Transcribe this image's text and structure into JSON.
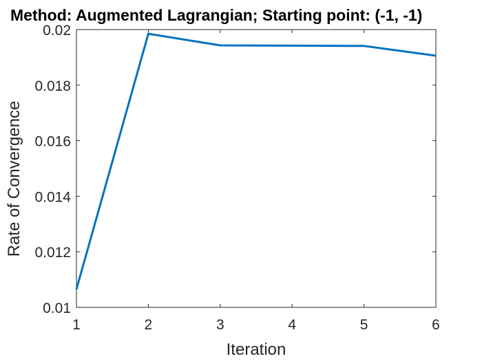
{
  "chart_data": {
    "type": "line",
    "title": "Method: Augmented Lagrangian; Starting point: (-1, -1)",
    "xlabel": "Iteration",
    "ylabel": "Rate of Convergence",
    "x": [
      1,
      2,
      3,
      4,
      5,
      6
    ],
    "series": [
      {
        "values": [
          0.01065,
          0.01985,
          0.01943,
          0.01942,
          0.01941,
          0.01906
        ],
        "color": "#0072bd"
      }
    ],
    "xlim": [
      1,
      6
    ],
    "ylim": [
      0.01,
      0.02
    ],
    "xticks": [
      1,
      2,
      3,
      4,
      5,
      6
    ],
    "xtick_labels": [
      "1",
      "2",
      "3",
      "4",
      "5",
      "6"
    ],
    "yticks": [
      0.01,
      0.012,
      0.014,
      0.016,
      0.018,
      0.02
    ],
    "ytick_labels": [
      "0.01",
      "0.012",
      "0.014",
      "0.016",
      "0.018",
      "0.02"
    ],
    "grid": false,
    "legend": "none",
    "axis_color": "#262626"
  }
}
